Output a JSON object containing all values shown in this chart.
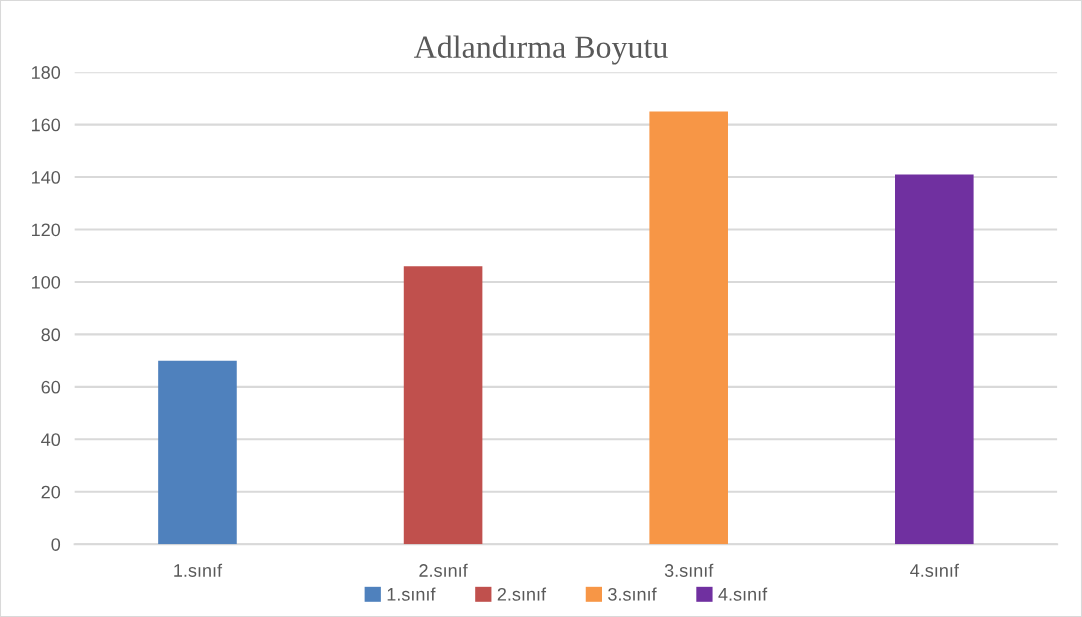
{
  "chart_data": {
    "type": "bar",
    "title": "Adlandırma Boyutu",
    "categories": [
      "1.sınıf",
      "2.sınıf",
      "3.sınıf",
      "4.sınıf"
    ],
    "series": [
      {
        "name": "1.sınıf",
        "color": "#4f81bd",
        "values": [
          70,
          null,
          null,
          null
        ]
      },
      {
        "name": "2.sınıf",
        "color": "#c0504d",
        "values": [
          null,
          106,
          null,
          null
        ]
      },
      {
        "name": "3.sınıf",
        "color": "#f79646",
        "values": [
          null,
          null,
          165,
          null
        ]
      },
      {
        "name": "4.sınıf",
        "color": "#7030a0",
        "values": [
          null,
          null,
          null,
          141
        ]
      }
    ],
    "ylim": [
      0,
      180
    ],
    "yticks": [
      0,
      20,
      40,
      60,
      80,
      100,
      120,
      140,
      160,
      180
    ],
    "grid": "y",
    "legend": "bottom"
  }
}
